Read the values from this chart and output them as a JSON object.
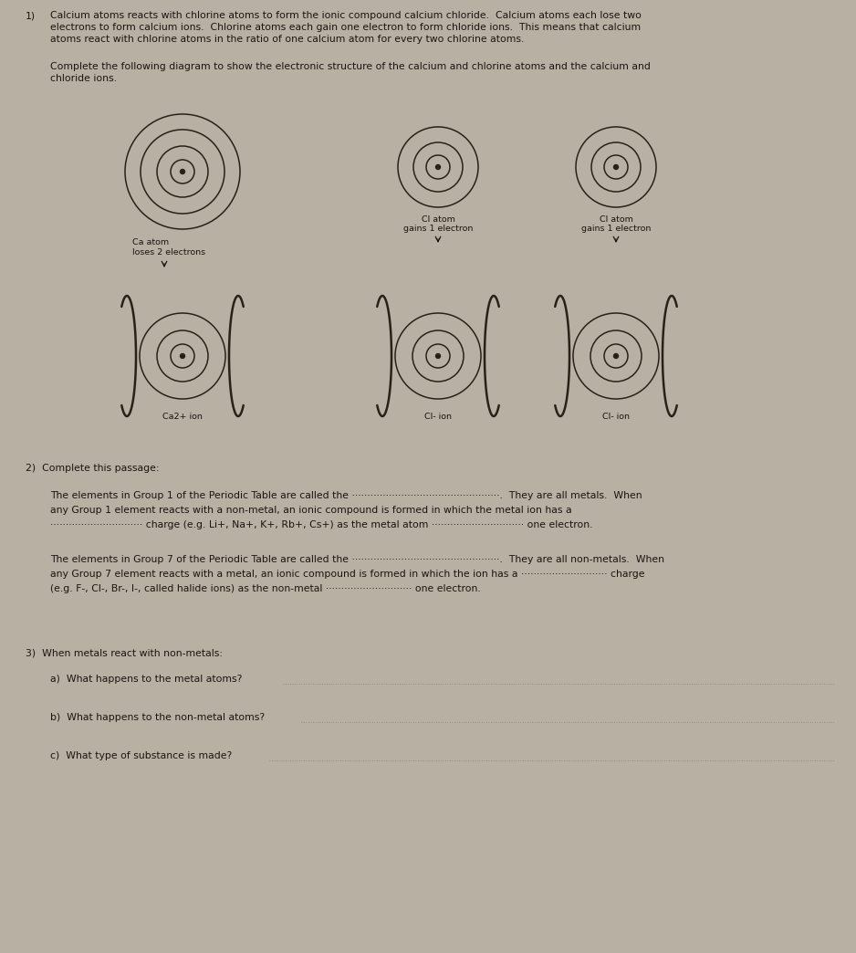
{
  "bg_color": "#b8b0a2",
  "text_color": "#1a1510",
  "circle_color": "#3a3028",
  "title_num": "1)",
  "para1": "Calcium atoms reacts with chlorine atoms to form the ionic compound calcium chloride.  Calcium atoms each lose two\nelectrons to form calcium ions.  Chlorine atoms each gain one electron to form chloride ions.  This means that calcium\natoms react with chlorine atoms in the ratio of one calcium atom for every two chlorine atoms.",
  "para2": "Complete the following diagram to show the electronic structure of the calcium and chlorine atoms and the calcium and\nchloride ions.",
  "ca_atom_label": "Ca atom",
  "ca_loses": "loses 2 electrons",
  "cl_atom_label1": "Cl atom",
  "cl_atom_label2": "Cl atom",
  "cl_gains1": "gains 1 electron",
  "cl_gains2": "gains 1 electron",
  "ca_ion_label": "Ca2+ ion",
  "cl_ion_label1": "Cl- ion",
  "cl_ion_label2": "Cl- ion",
  "q2_header": "2)  Complete this passage:",
  "q2_p1_l1": "The elements in Group 1 of the Periodic Table are called the ················································.  They are all metals.  When",
  "q2_p1_l2": "any Group 1 element reacts with a non-metal, an ionic compound is formed in which the metal ion has a",
  "q2_p1_l3": "······························ charge (e.g. Li+, Na+, K+, Rb+, Cs+) as the metal atom ······························ one electron.",
  "q2_p2_l1": "The elements in Group 7 of the Periodic Table are called the ················································.  They are all non-metals.  When",
  "q2_p2_l2": "any Group 7 element reacts with a metal, an ionic compound is formed in which the ion has a ···························· charge",
  "q2_p2_l3": "(e.g. F-, Cl-, Br-, I-, called halide ions) as the non-metal ···························· one electron.",
  "q3_header": "3)  When metals react with non-metals:",
  "q3a": "a)  What happens to the metal atoms?",
  "q3b": "b)  What happens to the non-metal atoms?",
  "q3c": "c)  What type of substance is made?"
}
